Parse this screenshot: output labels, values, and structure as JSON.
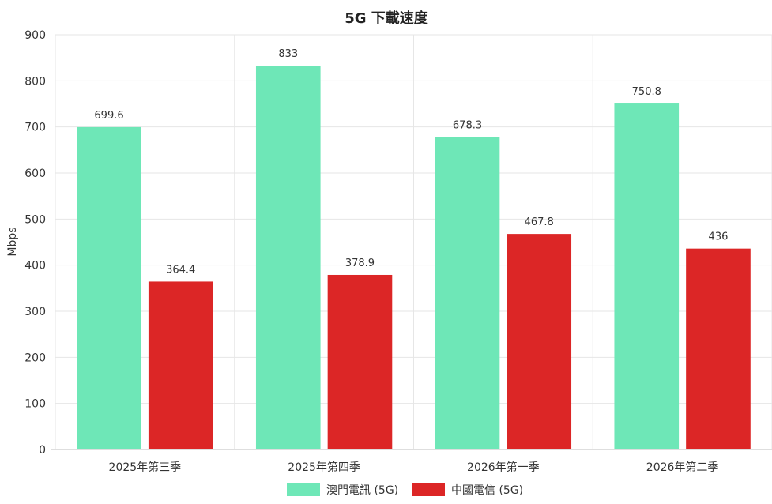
{
  "chart_data": {
    "type": "bar",
    "title": "5G 下載速度",
    "xlabel": "",
    "ylabel": "Mbps",
    "ylim": [
      0,
      900
    ],
    "yticks": [
      0,
      100,
      200,
      300,
      400,
      500,
      600,
      700,
      800,
      900
    ],
    "grid": true,
    "legend_position": "bottom",
    "categories": [
      "2025年第三季",
      "2025年第四季",
      "2026年第一季",
      "2026年第二季"
    ],
    "series": [
      {
        "name": "澳門電訊 (5G)",
        "color": "#6ee7b7",
        "values": [
          699.6,
          833,
          678.3,
          750.8
        ]
      },
      {
        "name": "中國電信 (5G)",
        "color": "#dc2626",
        "values": [
          364.4,
          378.9,
          467.8,
          436
        ]
      }
    ]
  }
}
